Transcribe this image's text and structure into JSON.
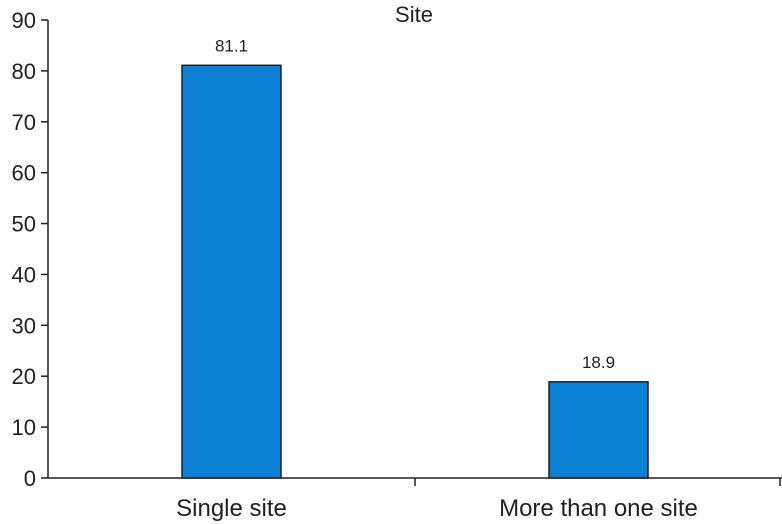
{
  "chart_data": {
    "type": "bar",
    "title": "Site",
    "categories": [
      "Single site",
      "More than one site"
    ],
    "values": [
      81.1,
      18.9
    ],
    "data_labels": [
      "81.1",
      "18.9"
    ],
    "yticks": [
      0,
      10,
      20,
      30,
      40,
      50,
      60,
      70,
      80,
      90
    ],
    "ylim": [
      0,
      90
    ],
    "xlabel": "",
    "ylabel": "",
    "grid": false,
    "legend": "none",
    "bar_color": "#0a7fd4",
    "axis_color": "#231f20"
  }
}
